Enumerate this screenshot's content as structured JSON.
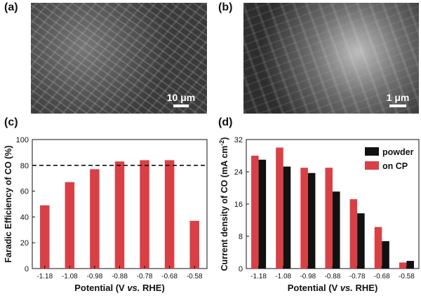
{
  "panels": {
    "a": {
      "letter": "(a)",
      "scale_label": "10 μm"
    },
    "b": {
      "letter": "(b)",
      "scale_label": "1 μm"
    },
    "c": {
      "letter": "(c)"
    },
    "d": {
      "letter": "(d)"
    }
  },
  "chart_data": [
    {
      "type": "bar",
      "panel": "c",
      "categories": [
        "-1.18",
        "-1.08",
        "-0.98",
        "-0.88",
        "-0.78",
        "-0.68",
        "-0.58"
      ],
      "values": [
        49,
        67,
        77,
        83,
        84,
        84,
        37
      ],
      "color": "#d94046",
      "xlabel": "Potential (V vs. RHE)",
      "ylabel": "Faradic Efficiency of CO (%)",
      "ylim": [
        0,
        100
      ],
      "yticks": [
        0,
        20,
        40,
        60,
        80,
        100
      ],
      "reference_line": 80,
      "grid": false
    },
    {
      "type": "bar",
      "panel": "d",
      "categories": [
        "-1.18",
        "-1.08",
        "-0.98",
        "-0.88",
        "-0.78",
        "-0.68",
        "-0.58"
      ],
      "series": [
        {
          "name": "on CP",
          "color": "#d94046",
          "values": [
            28.0,
            30.0,
            25.0,
            25.0,
            17.2,
            10.3,
            1.5
          ]
        },
        {
          "name": "powder",
          "color": "#111111",
          "values": [
            27.0,
            25.3,
            23.7,
            19.1,
            13.7,
            6.8,
            1.9
          ]
        }
      ],
      "legend_order": [
        "powder",
        "on CP"
      ],
      "legend_position": "top-right",
      "xlabel": "Potential (V vs. RHE)",
      "ylabel": "Current density of CO (mA cm-2)",
      "ylim": [
        0,
        32
      ],
      "yticks": [
        0,
        8,
        16,
        24,
        32
      ],
      "grid": false
    }
  ]
}
